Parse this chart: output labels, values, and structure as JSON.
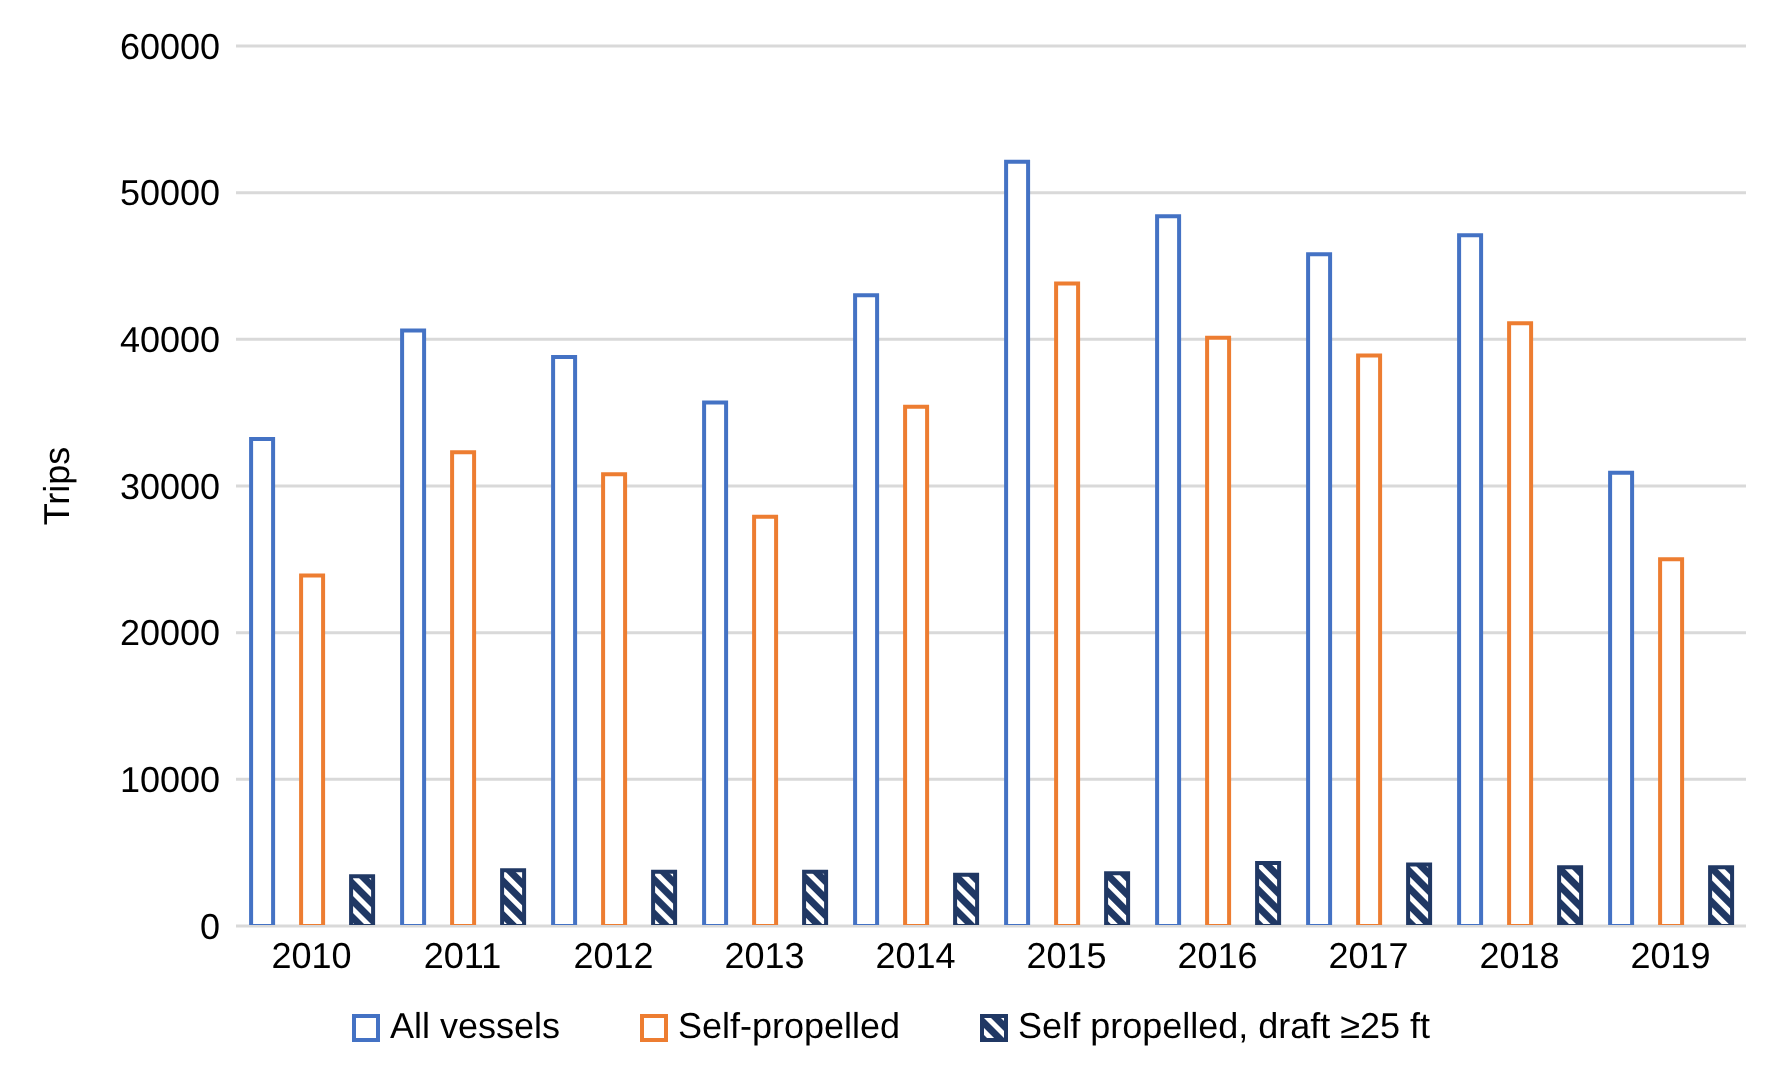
{
  "chart_data": {
    "type": "bar",
    "ylabel": "Trips",
    "categories": [
      "2010",
      "2011",
      "2012",
      "2013",
      "2014",
      "2015",
      "2016",
      "2017",
      "2018",
      "2019"
    ],
    "series": [
      {
        "name": "All vessels",
        "color": "#4472c4",
        "values": [
          33200,
          40600,
          38800,
          35700,
          43000,
          52100,
          48400,
          45800,
          47100,
          30900
        ]
      },
      {
        "name": "Self-propelled",
        "color": "#ed7d31",
        "values": [
          23900,
          32300,
          30800,
          27900,
          35400,
          43800,
          40100,
          38900,
          41100,
          25000
        ]
      },
      {
        "name": "Self propelled, draft ≥25 ft",
        "color": "#203864",
        "values": [
          3400,
          3800,
          3700,
          3700,
          3500,
          3600,
          4300,
          4200,
          4000,
          4000
        ]
      }
    ],
    "ylim": [
      0,
      60000
    ],
    "yticks": [
      0,
      10000,
      20000,
      30000,
      40000,
      50000,
      60000
    ],
    "grid": "y",
    "legend": "bottom"
  }
}
